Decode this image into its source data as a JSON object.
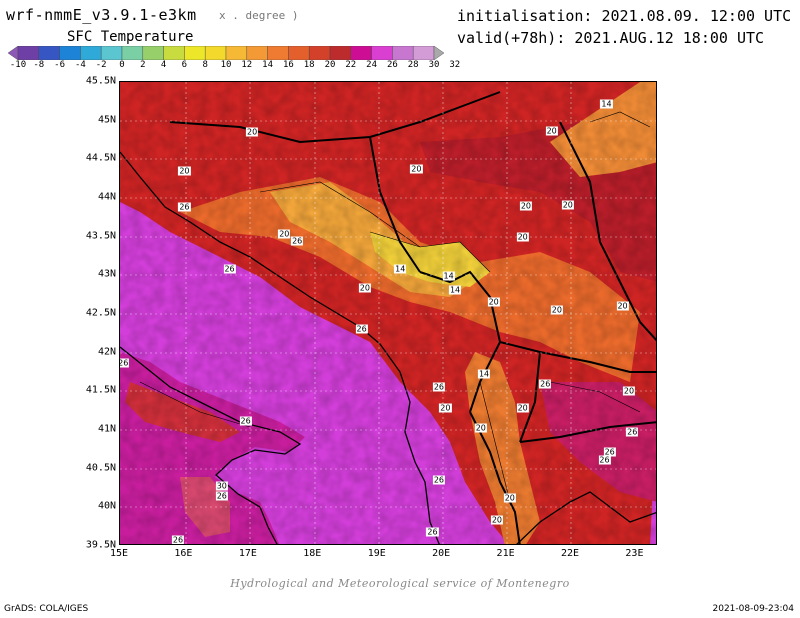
{
  "header": {
    "model_title": "wrf-nmmE_v3.9.1-e3km",
    "model_subtitle": "x . degree )",
    "field_name": "SFC Temperature",
    "initialisation": "initialisation: 2021.08.09. 12:00 UTC",
    "valid": "valid(+78h): 2021.AUG.12 18:00 UTC"
  },
  "colorbar": {
    "labels": [
      "-10",
      "-8",
      "-6",
      "-4",
      "-2",
      "0",
      "2",
      "4",
      "6",
      "8",
      "10",
      "12",
      "14",
      "16",
      "18",
      "20",
      "22",
      "24",
      "26",
      "28",
      "30",
      "32"
    ],
    "colors": [
      "#a000c8",
      "#8200dc",
      "#1e3cff",
      "#00a0ff",
      "#00c8c8",
      "#00d28c",
      "#00dc00",
      "#a0e632",
      "#e6dc32",
      "#e6af2d",
      "#f08228",
      "#fa5a00",
      "#e62800",
      "#c00000",
      "#a00000",
      "#c8007a",
      "#dc00dc",
      "#e14be6",
      "#c882c8",
      "#d7a0e6",
      "#e6c8f0"
    ],
    "cb_colors_actual": [
      "#8c59b6",
      "#6e3fa4",
      "#3656c4",
      "#1d83d6",
      "#2fa9d8",
      "#5cc6d0",
      "#7ad0a4",
      "#97cf6a",
      "#c9dc3f",
      "#ece729",
      "#f3d92b",
      "#f5b935",
      "#f39a36",
      "#ef7b33",
      "#e35f2c",
      "#d4412a",
      "#bd2c2d",
      "#cd0e94",
      "#d93fd1",
      "#c877d1",
      "#d39cd6",
      "#a9a9a9"
    ]
  },
  "map": {
    "lat_labels": [
      "45.5N",
      "45N",
      "44.5N",
      "44N",
      "43.5N",
      "43N",
      "42.5N",
      "42N",
      "41.5N",
      "41N",
      "40.5N",
      "40N",
      "39.5N"
    ],
    "lon_labels": [
      "15E",
      "16E",
      "17E",
      "18E",
      "19E",
      "20E",
      "21E",
      "22E",
      "23E"
    ],
    "contour_labels": [
      {
        "text": "14",
        "lon": 22.55,
        "lat": 45.22
      },
      {
        "text": "20",
        "lon": 17.05,
        "lat": 44.85
      },
      {
        "text": "20",
        "lon": 21.7,
        "lat": 44.87
      },
      {
        "text": "20",
        "lon": 16.0,
        "lat": 44.35
      },
      {
        "text": "20",
        "lon": 19.6,
        "lat": 44.38
      },
      {
        "text": "26",
        "lon": 16.0,
        "lat": 43.89
      },
      {
        "text": "20",
        "lon": 21.3,
        "lat": 43.9
      },
      {
        "text": "20",
        "lon": 21.95,
        "lat": 43.91
      },
      {
        "text": "20",
        "lon": 17.55,
        "lat": 43.54
      },
      {
        "text": "26",
        "lon": 17.75,
        "lat": 43.44
      },
      {
        "text": "20",
        "lon": 21.25,
        "lat": 43.49
      },
      {
        "text": "26",
        "lon": 16.7,
        "lat": 43.08
      },
      {
        "text": "14",
        "lon": 19.35,
        "lat": 43.08
      },
      {
        "text": "14",
        "lon": 20.1,
        "lat": 42.99
      },
      {
        "text": "14",
        "lon": 20.2,
        "lat": 42.81
      },
      {
        "text": "20",
        "lon": 18.8,
        "lat": 42.83
      },
      {
        "text": "20",
        "lon": 20.8,
        "lat": 42.65
      },
      {
        "text": "20",
        "lon": 21.78,
        "lat": 42.55
      },
      {
        "text": "20",
        "lon": 22.8,
        "lat": 42.6
      },
      {
        "text": "26",
        "lon": 18.75,
        "lat": 42.3
      },
      {
        "text": "26",
        "lon": 15.05,
        "lat": 41.87
      },
      {
        "text": "14",
        "lon": 20.65,
        "lat": 41.72
      },
      {
        "text": "26",
        "lon": 19.95,
        "lat": 41.55
      },
      {
        "text": "26",
        "lon": 21.6,
        "lat": 41.59
      },
      {
        "text": "20",
        "lon": 22.9,
        "lat": 41.5
      },
      {
        "text": "20",
        "lon": 20.05,
        "lat": 41.28
      },
      {
        "text": "20",
        "lon": 21.25,
        "lat": 41.29
      },
      {
        "text": "26",
        "lon": 16.95,
        "lat": 41.11
      },
      {
        "text": "20",
        "lon": 20.6,
        "lat": 41.03
      },
      {
        "text": "26",
        "lon": 22.95,
        "lat": 40.98
      },
      {
        "text": "26",
        "lon": 22.6,
        "lat": 40.72
      },
      {
        "text": "26",
        "lon": 22.52,
        "lat": 40.61
      },
      {
        "text": "30",
        "lon": 16.58,
        "lat": 40.28
      },
      {
        "text": "26",
        "lon": 16.58,
        "lat": 40.15
      },
      {
        "text": "26",
        "lon": 19.95,
        "lat": 40.35
      },
      {
        "text": "20",
        "lon": 21.05,
        "lat": 40.12
      },
      {
        "text": "20",
        "lon": 20.85,
        "lat": 39.84
      },
      {
        "text": "26",
        "lon": 19.85,
        "lat": 39.68
      },
      {
        "text": "26",
        "lon": 15.9,
        "lat": 39.58
      }
    ]
  },
  "footer": {
    "credit": "Hydrological and Meteorological service of Montenegro",
    "grads": "GrADS: COLA/IGES",
    "timestamp": "2021-08-09-23:04"
  }
}
